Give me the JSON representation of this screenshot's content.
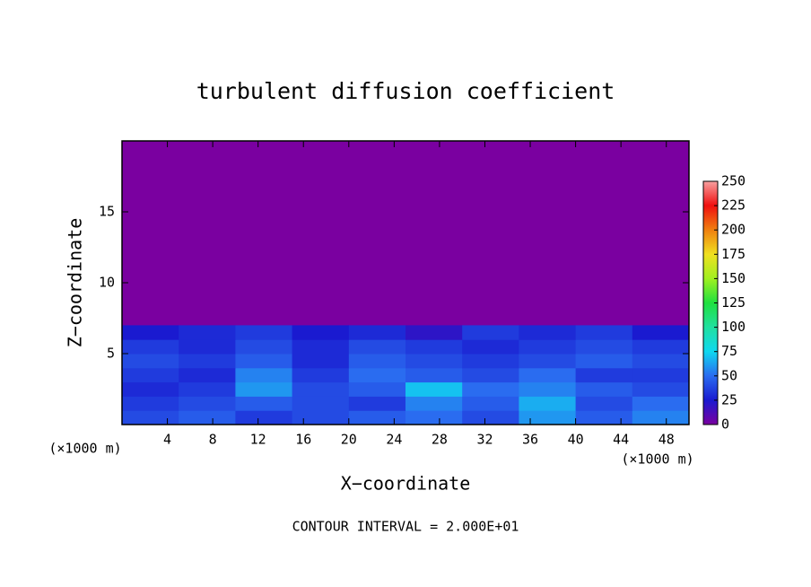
{
  "chart_data": {
    "type": "heatmap",
    "title": "turbulent diffusion coefficient",
    "x_label": "X−coordinate",
    "y_label": "Z−coordinate",
    "x_unit": "(×1000 m)",
    "note": "CONTOUR INTERVAL = 2.000E+01",
    "xlim": [
      0,
      50
    ],
    "ylim": [
      0,
      20
    ],
    "xticks": [
      4,
      8,
      12,
      16,
      20,
      24,
      28,
      32,
      36,
      40,
      44,
      48
    ],
    "yticks": [
      5,
      10,
      15
    ],
    "x": [
      2.5,
      7.5,
      12.5,
      17.5,
      22.5,
      27.5,
      32.5,
      37.5,
      42.5,
      47.5
    ],
    "y": [
      0.5,
      1.5,
      2.5,
      3.5,
      4.5,
      5.5,
      6.5
    ],
    "z": [
      [
        40,
        45,
        35,
        40,
        45,
        50,
        40,
        60,
        45,
        55
      ],
      [
        35,
        40,
        45,
        40,
        35,
        55,
        45,
        65,
        40,
        50
      ],
      [
        30,
        35,
        60,
        40,
        45,
        70,
        50,
        55,
        45,
        40
      ],
      [
        35,
        30,
        55,
        35,
        50,
        45,
        40,
        50,
        35,
        35
      ],
      [
        40,
        35,
        45,
        30,
        45,
        40,
        35,
        40,
        45,
        40
      ],
      [
        35,
        30,
        40,
        30,
        40,
        35,
        30,
        35,
        40,
        35
      ],
      [
        25,
        30,
        35,
        25,
        30,
        20,
        35,
        30,
        35,
        25
      ]
    ],
    "colorscale": [
      {
        "value": 0,
        "color": "#7a00a0"
      },
      {
        "value": 25,
        "color": "#1a1ad0"
      },
      {
        "value": 50,
        "color": "#2a6cf0"
      },
      {
        "value": 75,
        "color": "#10d8f0"
      },
      {
        "value": 100,
        "color": "#20e0a0"
      },
      {
        "value": 125,
        "color": "#20e040"
      },
      {
        "value": 150,
        "color": "#a0f020"
      },
      {
        "value": 175,
        "color": "#f0e020"
      },
      {
        "value": 200,
        "color": "#f08010"
      },
      {
        "value": 225,
        "color": "#f01010"
      },
      {
        "value": 250,
        "color": "#f8a0a0"
      }
    ],
    "colorbar_ticks": [
      0,
      25,
      50,
      75,
      100,
      125,
      150,
      175,
      200,
      225,
      250
    ]
  }
}
